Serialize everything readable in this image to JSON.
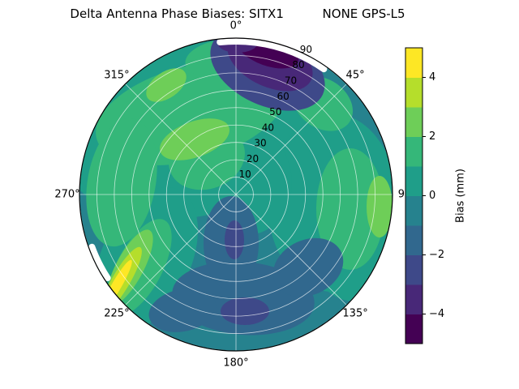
{
  "title": "Delta Antenna Phase Biases: SITX1          NONE GPS-L5",
  "polar": {
    "theta_labels": [
      {
        "label": "0°",
        "angle": 0
      },
      {
        "label": "45°",
        "angle": 45
      },
      {
        "label": "90",
        "angle": 90
      },
      {
        "label": "135°",
        "angle": 135
      },
      {
        "label": "180°",
        "angle": 180
      },
      {
        "label": "225°",
        "angle": 225
      },
      {
        "label": "270°",
        "angle": 270
      },
      {
        "label": "315°",
        "angle": 315
      }
    ],
    "r_labels": [
      "10",
      "20",
      "30",
      "40",
      "50",
      "60",
      "70",
      "80",
      "90"
    ],
    "r_values": [
      10,
      20,
      30,
      40,
      50,
      60,
      70,
      80,
      90
    ],
    "r_max": 90,
    "r_label_angle": 26
  },
  "colorbar": {
    "label": "Bias (mm)",
    "ticks": [
      "4",
      "2",
      "0",
      "−2",
      "−4"
    ],
    "tick_values": [
      4,
      2,
      0,
      -2,
      -4
    ],
    "vmin": -5,
    "vmax": 5,
    "band_colors": [
      "#440154",
      "#482878",
      "#3e4989",
      "#31688e",
      "#26828e",
      "#1f9e89",
      "#35b779",
      "#6ece58",
      "#b5de2b",
      "#fde725"
    ]
  },
  "chart_data": {
    "type": "polar_contour",
    "title": "Delta Antenna Phase Biases: SITX1          NONE GPS-L5",
    "colormap": "viridis",
    "units": "mm",
    "colorbar_label": "Bias (mm)",
    "clim": [
      -5,
      5
    ],
    "levels": [
      -5,
      -4,
      -3,
      -2,
      -1,
      0,
      1,
      2,
      3,
      4,
      5
    ],
    "colorbar_ticks": [
      -4,
      -2,
      0,
      2,
      4
    ],
    "theta_ticks_deg": [
      0,
      45,
      90,
      135,
      180,
      225,
      270,
      315
    ],
    "r_ticks": [
      10,
      20,
      30,
      40,
      50,
      60,
      70,
      80,
      90
    ],
    "azimuth_deg": [
      0,
      30,
      60,
      90,
      120,
      150,
      180,
      210,
      240,
      270,
      300,
      330
    ],
    "zenith_deg": [
      0,
      15,
      30,
      45,
      60,
      75,
      90
    ],
    "values_bias_mm": [
      [
        0.5,
        1.0,
        1.5,
        2.0,
        1.0,
        -3.0,
        -5.0
      ],
      [
        0.5,
        1.0,
        2.0,
        2.5,
        0.5,
        -4.0,
        -4.5
      ],
      [
        0.5,
        1.0,
        1.5,
        2.0,
        2.0,
        1.0,
        0.5
      ],
      [
        0.5,
        0.5,
        1.0,
        1.5,
        2.0,
        2.5,
        3.0
      ],
      [
        0.0,
        0.0,
        -0.5,
        0.0,
        1.0,
        1.5,
        1.0
      ],
      [
        0.0,
        -0.5,
        -1.0,
        -1.5,
        -1.0,
        -0.5,
        0.0
      ],
      [
        0.0,
        -0.5,
        -1.5,
        -2.0,
        -2.5,
        -1.0,
        -0.5
      ],
      [
        0.0,
        -0.5,
        -1.0,
        -1.5,
        -1.0,
        0.0,
        0.5
      ],
      [
        0.0,
        0.0,
        0.5,
        1.0,
        2.0,
        3.5,
        5.0
      ],
      [
        0.0,
        0.5,
        0.5,
        1.0,
        1.5,
        2.0,
        2.5
      ],
      [
        0.5,
        0.5,
        1.0,
        1.5,
        2.0,
        1.5,
        1.0
      ],
      [
        0.5,
        1.0,
        1.5,
        1.5,
        1.0,
        -0.5,
        -3.0
      ]
    ]
  }
}
